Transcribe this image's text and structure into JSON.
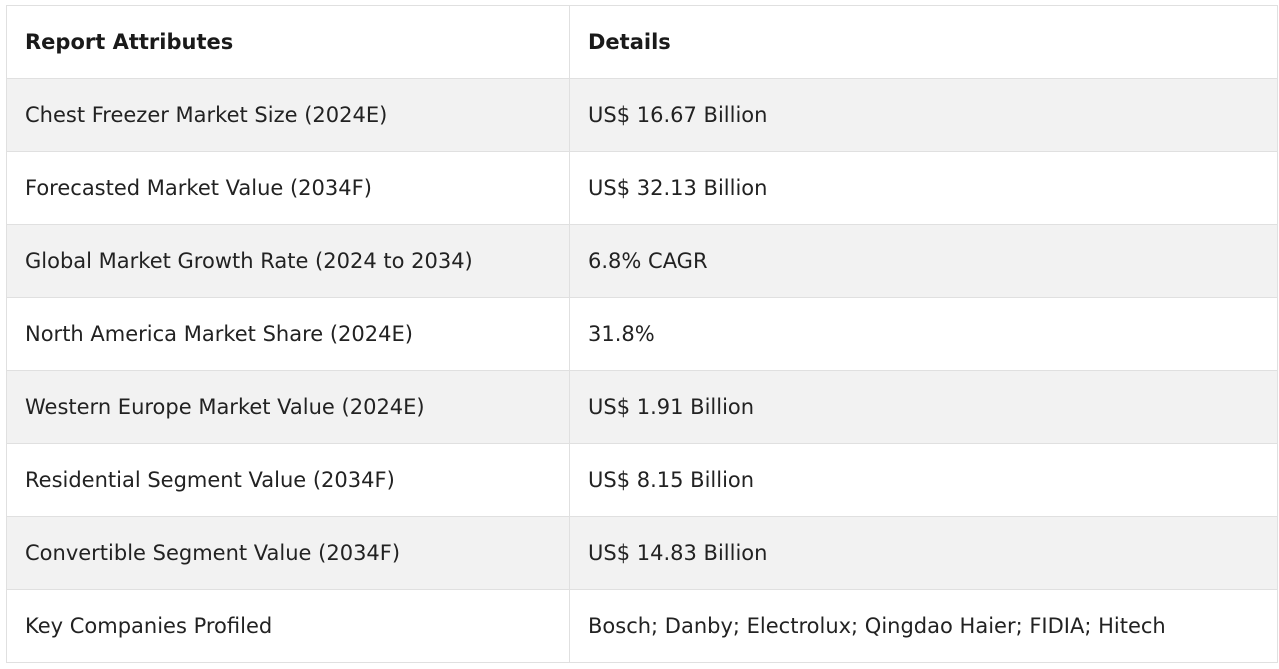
{
  "table": {
    "headers": [
      "Report Attributes",
      "Details"
    ],
    "rows": [
      [
        "Chest Freezer Market Size (2024E)",
        "US$ 16.67 Billion"
      ],
      [
        "Forecasted Market Value (2034F)",
        "US$ 32.13 Billion"
      ],
      [
        "Global Market Growth Rate (2024 to 2034)",
        "6.8% CAGR"
      ],
      [
        "North America Market Share (2024E)",
        "31.8%"
      ],
      [
        "Western Europe Market Value (2024E)",
        "US$ 1.91 Billion"
      ],
      [
        "Residential Segment Value (2034F)",
        "US$ 8.15 Billion"
      ],
      [
        "Convertible Segment Value (2034F)",
        "US$ 14.83 Billion"
      ],
      [
        "Key Companies Profiled",
        "Bosch; Danby; Electrolux; Qingdao Haier; FIDIA; Hitech"
      ]
    ]
  },
  "colors": {
    "stripe": "#f2f2f2",
    "border": "#e0e0e0",
    "text": "#222222"
  }
}
